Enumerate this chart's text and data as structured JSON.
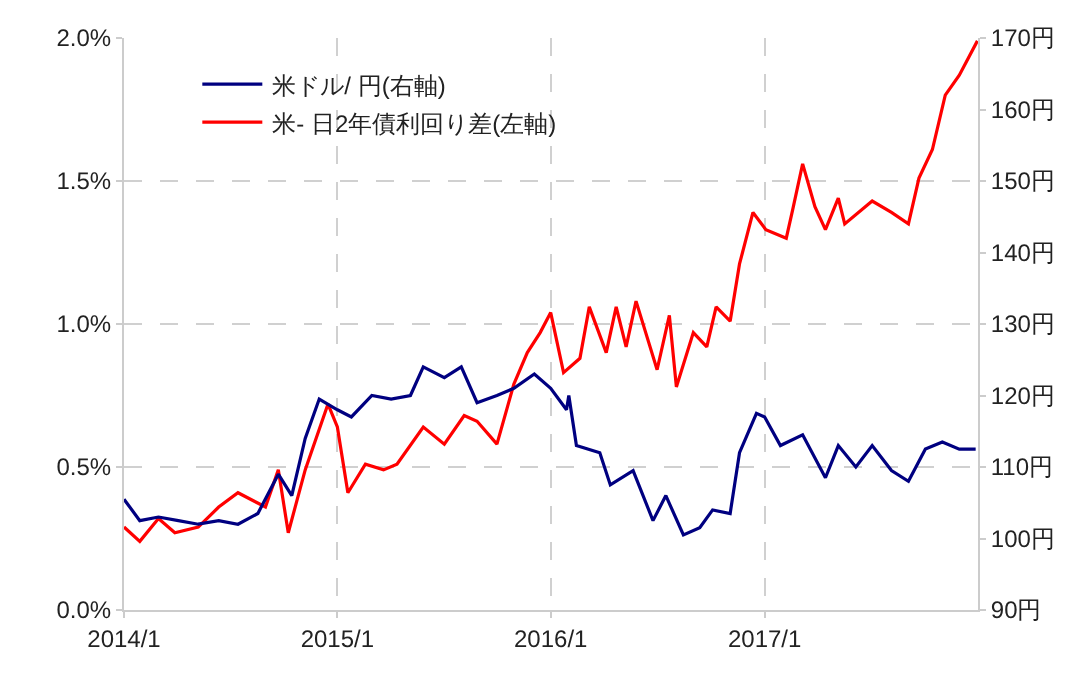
{
  "chart_data": {
    "type": "line",
    "xlim": [
      "2014-01-01",
      "2018-01-01"
    ],
    "xticks": [
      {
        "value": "2014-01-01",
        "label": "2014/1"
      },
      {
        "value": "2015-01-01",
        "label": "2015/1"
      },
      {
        "value": "2016-01-01",
        "label": "2016/1"
      },
      {
        "value": "2017-01-01",
        "label": "2017/1"
      }
    ],
    "ylim": [
      0,
      2
    ],
    "yticks": [
      {
        "value": 0,
        "label": "0.0%"
      },
      {
        "value": 0.5,
        "label": "0.5%"
      },
      {
        "value": 1,
        "label": "1.0%"
      },
      {
        "value": 1.5,
        "label": "1.5%"
      },
      {
        "value": 2,
        "label": "2.0%"
      }
    ],
    "y2lim": [
      90,
      170
    ],
    "y2ticks": [
      {
        "value": 90,
        "label": "90円"
      },
      {
        "value": 100,
        "label": "100円"
      },
      {
        "value": 110,
        "label": "110円"
      },
      {
        "value": 120,
        "label": "120円"
      },
      {
        "value": 130,
        "label": "130円"
      },
      {
        "value": 140,
        "label": "140円"
      },
      {
        "value": 150,
        "label": "150円"
      },
      {
        "value": 160,
        "label": "160円"
      },
      {
        "value": 170,
        "label": "170円"
      }
    ],
    "grid": true,
    "legend": "top left",
    "series": [
      {
        "name": "米ドル/ 円(右軸)",
        "color": "#000080",
        "axis": "y2",
        "x": [
          "2014-01-01",
          "2014-01-28",
          "2014-03-01",
          "2014-04-04",
          "2014-05-08",
          "2014-06-12",
          "2014-07-15",
          "2014-08-18",
          "2014-09-22",
          "2014-10-15",
          "2014-11-07",
          "2014-12-01",
          "2015-01-01",
          "2015-01-25",
          "2015-03-01",
          "2015-04-03",
          "2015-05-06",
          "2015-05-28",
          "2015-07-03",
          "2015-08-01",
          "2015-08-28",
          "2015-10-01",
          "2015-10-30",
          "2015-12-04",
          "2016-01-01",
          "2016-01-28",
          "2016-02-01",
          "2016-02-14",
          "2016-03-25",
          "2016-04-12",
          "2016-05-21",
          "2016-06-24",
          "2016-07-16",
          "2016-08-15",
          "2016-09-12",
          "2016-10-04",
          "2016-11-03",
          "2016-11-19",
          "2016-12-18",
          "2017-01-01",
          "2017-01-28",
          "2017-03-07",
          "2017-04-15",
          "2017-05-07",
          "2017-06-06",
          "2017-07-04",
          "2017-08-06",
          "2017-09-04",
          "2017-10-03",
          "2017-11-01",
          "2017-11-30",
          "2017-12-28"
        ],
        "values": [
          105.5,
          102.5,
          103,
          102.5,
          102,
          102.5,
          102,
          103.5,
          109,
          106,
          114,
          119.5,
          118,
          117,
          120,
          119.5,
          120,
          124,
          122.5,
          124,
          119,
          120,
          121,
          123,
          121,
          118,
          120,
          113,
          112,
          107.5,
          109.5,
          102.5,
          106,
          100.5,
          101.5,
          104,
          103.5,
          112,
          117.5,
          117,
          113,
          114.5,
          108.5,
          113,
          110,
          113,
          109.5,
          108,
          112.5,
          113.5,
          112.5,
          112.5
        ]
      },
      {
        "name": "米- 日2年債利回り差(左軸)",
        "color": "#ff0000",
        "x": [
          "2014-01-01",
          "2014-01-28",
          "2014-03-01",
          "2014-03-29",
          "2014-05-08",
          "2014-06-12",
          "2014-07-15",
          "2014-08-31",
          "2014-09-22",
          "2014-10-09",
          "2014-11-07",
          "2014-12-16",
          "2015-01-01",
          "2015-01-19",
          "2015-02-18",
          "2015-03-21",
          "2015-04-13",
          "2015-05-28",
          "2015-07-03",
          "2015-08-06",
          "2015-08-28",
          "2015-10-01",
          "2015-10-30",
          "2015-11-22",
          "2015-12-14",
          "2016-01-01",
          "2016-01-23",
          "2016-02-20",
          "2016-03-07",
          "2016-04-05",
          "2016-04-22",
          "2016-05-09",
          "2016-05-26",
          "2016-07-01",
          "2016-07-22",
          "2016-08-03",
          "2016-09-01",
          "2016-09-24",
          "2016-10-10",
          "2016-11-03",
          "2016-11-19",
          "2016-12-12",
          "2017-01-03",
          "2017-02-07",
          "2017-02-18",
          "2017-03-07",
          "2017-03-28",
          "2017-04-15",
          "2017-05-07",
          "2017-05-18",
          "2017-07-04",
          "2017-08-06",
          "2017-09-04",
          "2017-09-22",
          "2017-10-15",
          "2017-11-06",
          "2017-11-30",
          "2017-12-31"
        ],
        "values": [
          0.29,
          0.24,
          0.32,
          0.27,
          0.29,
          0.36,
          0.41,
          0.36,
          0.49,
          0.27,
          0.49,
          0.72,
          0.64,
          0.41,
          0.51,
          0.49,
          0.51,
          0.64,
          0.58,
          0.68,
          0.66,
          0.58,
          0.79,
          0.9,
          0.97,
          1.04,
          0.83,
          0.88,
          1.06,
          0.9,
          1.06,
          0.92,
          1.08,
          0.84,
          1.03,
          0.78,
          0.97,
          0.92,
          1.06,
          1.01,
          1.21,
          1.39,
          1.33,
          1.3,
          1.4,
          1.56,
          1.41,
          1.33,
          1.44,
          1.35,
          1.43,
          1.39,
          1.35,
          1.51,
          1.61,
          1.8,
          1.87,
          1.99
        ]
      }
    ]
  }
}
